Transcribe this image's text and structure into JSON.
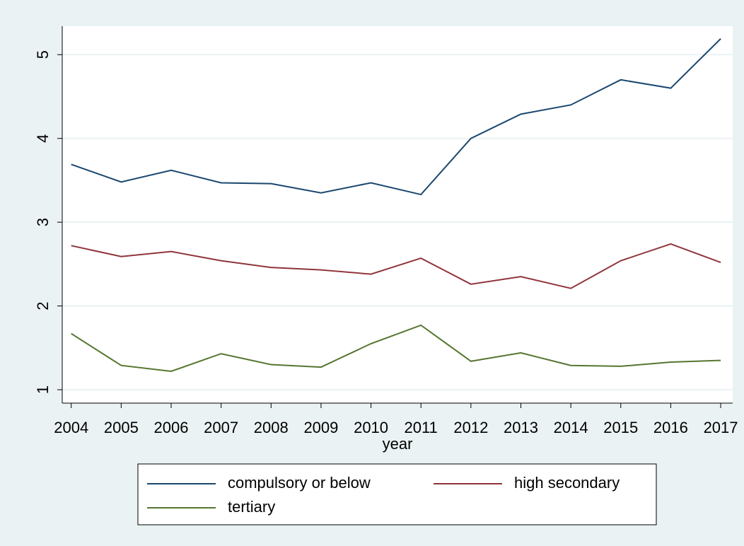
{
  "chart_data": {
    "type": "line",
    "x_label": "year",
    "x": [
      2004,
      2005,
      2006,
      2007,
      2008,
      2009,
      2010,
      2011,
      2012,
      2013,
      2014,
      2015,
      2016,
      2017
    ],
    "series": [
      {
        "name": "compulsory or below",
        "color": "#1a476f",
        "values": [
          3.69,
          3.48,
          3.62,
          3.47,
          3.46,
          3.35,
          3.47,
          3.33,
          4.0,
          4.29,
          4.4,
          4.7,
          4.6,
          5.19
        ]
      },
      {
        "name": "high secondary",
        "color": "#90353b",
        "values": [
          2.72,
          2.59,
          2.65,
          2.54,
          2.46,
          2.43,
          2.38,
          2.57,
          2.26,
          2.35,
          2.21,
          2.54,
          2.74,
          2.52
        ]
      },
      {
        "name": "tertiary",
        "color": "#55752f",
        "values": [
          1.67,
          1.29,
          1.22,
          1.43,
          1.3,
          1.27,
          1.55,
          1.77,
          1.34,
          1.44,
          1.29,
          1.28,
          1.33,
          1.35
        ]
      }
    ],
    "xlim": [
      2003.82,
      2017.24
    ],
    "xticks": [
      2004,
      2005,
      2006,
      2007,
      2008,
      2009,
      2010,
      2011,
      2012,
      2013,
      2014,
      2015,
      2016,
      2017
    ],
    "ylim": [
      0.84,
      5.34
    ],
    "yticks": [
      1,
      2,
      3,
      4,
      5
    ],
    "grid": true,
    "legend": "bottom"
  }
}
